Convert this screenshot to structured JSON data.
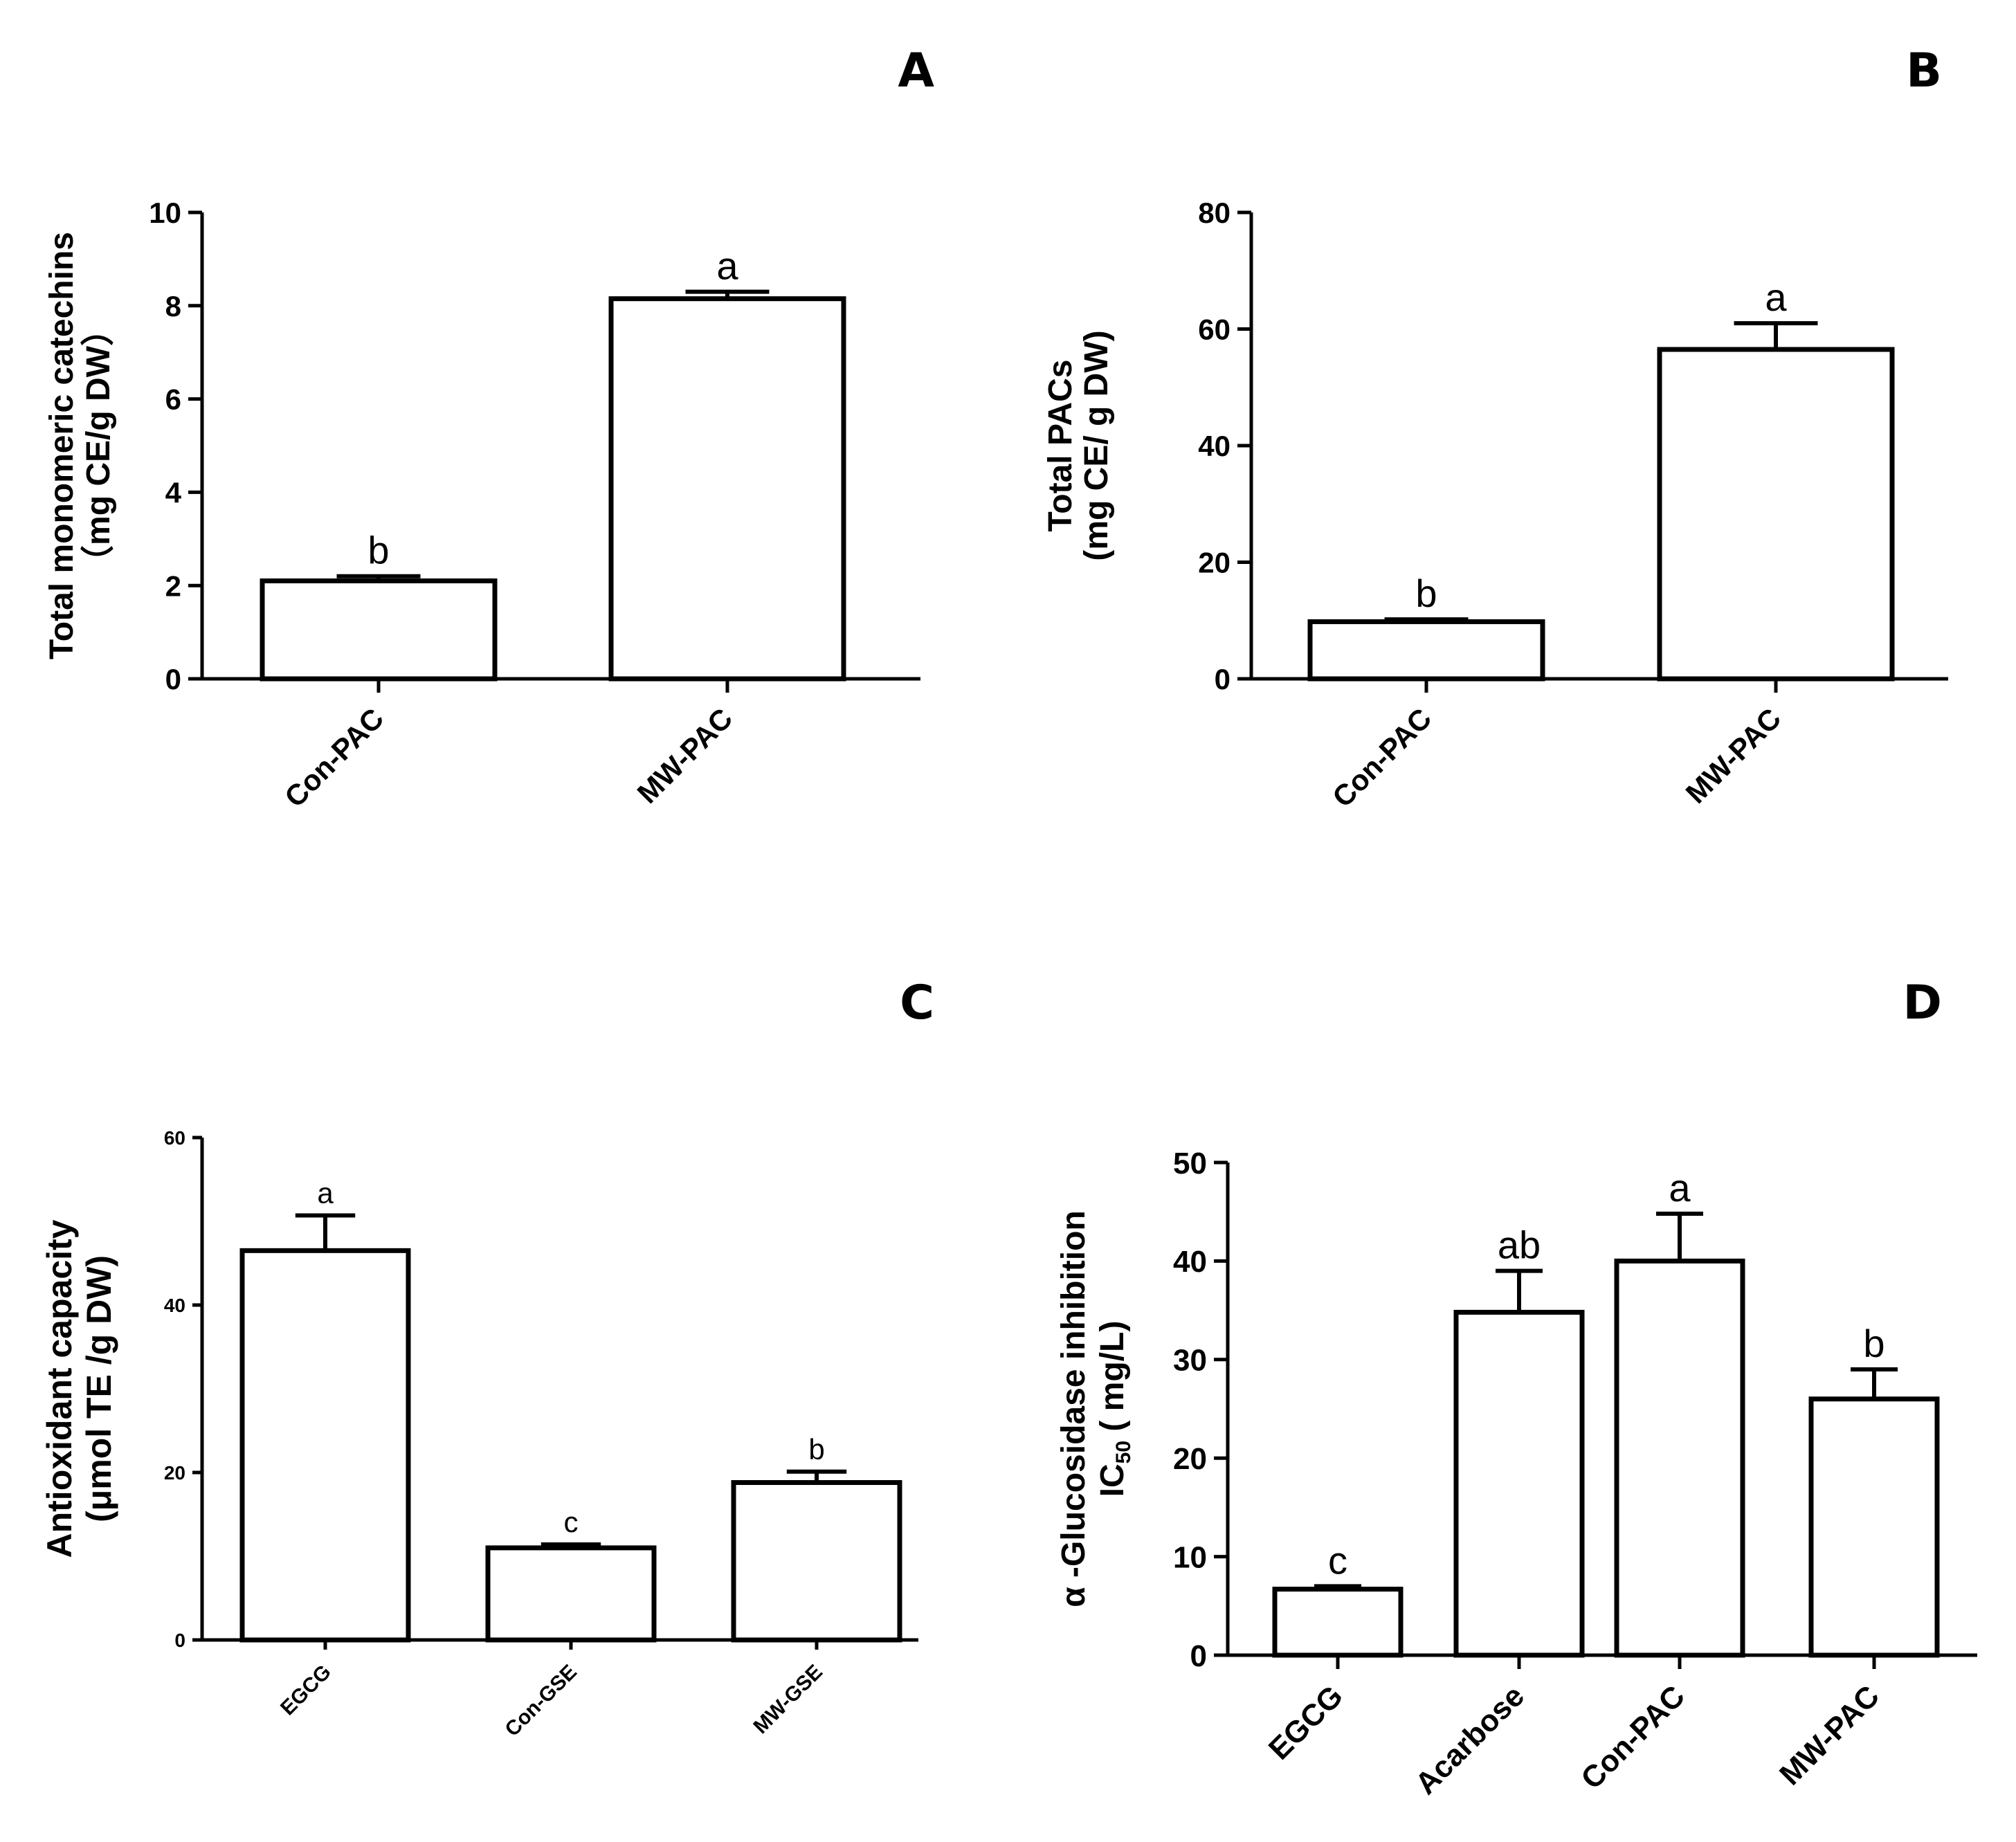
{
  "chart_data": [
    {
      "panel": "A",
      "type": "bar",
      "title": "",
      "categories": [
        "Con-PAC",
        "MW-PAC"
      ],
      "values": [
        2.1,
        8.15
      ],
      "errors": [
        0.1,
        0.15
      ],
      "significance": [
        "b",
        "a"
      ],
      "ylabel": [
        "Total monomeric catechins",
        "（mg CE/g DW）"
      ],
      "xlabel": "",
      "ylim": [
        0,
        10
      ],
      "yticks": [
        0,
        2,
        4,
        6,
        8,
        10
      ]
    },
    {
      "panel": "B",
      "type": "bar",
      "title": "",
      "categories": [
        "Con-PAC",
        "MW-PAC"
      ],
      "values": [
        9.8,
        56.5
      ],
      "errors": [
        0.4,
        4.5
      ],
      "significance": [
        "b",
        "a"
      ],
      "ylabel": [
        "Total PACs",
        "(mg CE/ g DW)"
      ],
      "xlabel": "",
      "ylim": [
        0,
        80
      ],
      "yticks": [
        0,
        20,
        40,
        60,
        80
      ]
    },
    {
      "panel": "C",
      "type": "bar",
      "title": "",
      "categories": [
        "EGCG",
        "Con-GSE",
        "MW-GSE"
      ],
      "values": [
        46.5,
        11.0,
        18.8
      ],
      "errors": [
        4.2,
        0.4,
        1.3
      ],
      "significance": [
        "a",
        "c",
        "b"
      ],
      "ylabel": [
        "Antioxidant capacity",
        "(μmol TE /g DW)"
      ],
      "xlabel": "",
      "ylim": [
        0,
        60
      ],
      "yticks": [
        0,
        20,
        40,
        60
      ]
    },
    {
      "panel": "D",
      "type": "bar",
      "title": "",
      "categories": [
        "EGCG",
        "Acarbose",
        "Con-PAC",
        "MW-PAC"
      ],
      "values": [
        6.7,
        34.8,
        40.0,
        26.0
      ],
      "errors": [
        0.3,
        4.2,
        4.8,
        3.0
      ],
      "significance": [
        "c",
        "ab",
        "a",
        "b"
      ],
      "ylabel": [
        "α -Glucosidase inhibition",
        "IC",
        "50",
        "( mg/L)"
      ],
      "xlabel": "",
      "ylim": [
        0,
        50
      ],
      "yticks": [
        0,
        10,
        20,
        30,
        40,
        50
      ]
    }
  ]
}
